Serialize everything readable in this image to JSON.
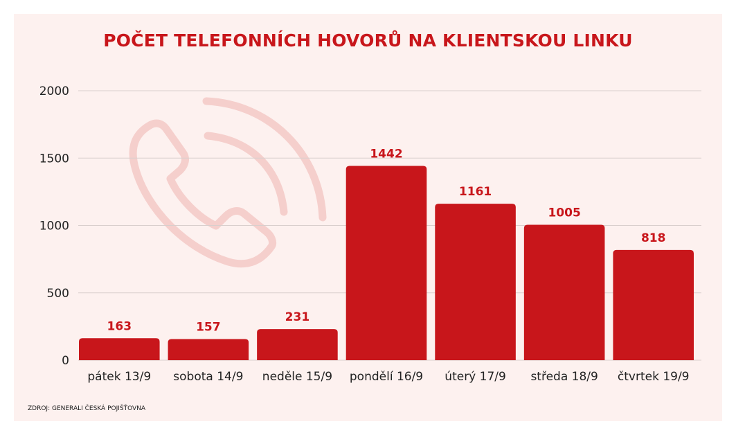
{
  "chart_data": {
    "type": "bar",
    "title": "POČET TELEFONNÍCH HOVORŮ NA KLIENTSKOU LINKU",
    "categories": [
      "pátek 13/9",
      "sobota 14/9",
      "neděle 15/9",
      "pondělí 16/9",
      "úterý 17/9",
      "středa 18/9",
      "čtvrtek 19/9"
    ],
    "values": [
      163,
      157,
      231,
      1442,
      1161,
      1005,
      818
    ],
    "data_labels": [
      "163",
      "157",
      "231",
      "1442",
      "1161",
      "1005",
      "818"
    ],
    "y_ticks": [
      0,
      500,
      1000,
      1500,
      2000
    ],
    "y_tick_labels": [
      "0",
      "500",
      "1000",
      "1500",
      "2000"
    ],
    "ylim": [
      0,
      2000
    ],
    "grid": true,
    "legend": "none",
    "bar_color": "#c8161b",
    "title_color": "#c8161b",
    "label_color": "#c8161b",
    "background_color": "#fdf1ef",
    "decoration_icon": "phone-icon"
  },
  "source": "ZDROJ: GENERALI ČESKÁ POJIŠŤOVNA"
}
